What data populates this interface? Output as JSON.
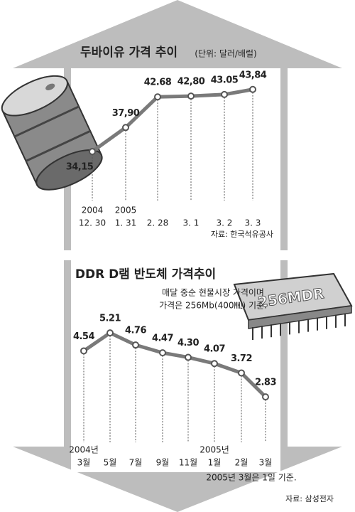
{
  "chart_data": [
    {
      "type": "line",
      "title": "두바이유 가격 추이",
      "subtitle": "(단위: 달러/배럴)",
      "year_labels": [
        "2004",
        "2005",
        null,
        null,
        null,
        null
      ],
      "categories": [
        "12. 30",
        "1. 31",
        "2. 28",
        "3. 1",
        "3. 2",
        "3. 3"
      ],
      "values": [
        34.15,
        37.9,
        42.68,
        42.8,
        43.05,
        43.84
      ],
      "value_labels": [
        "34,15",
        "37,90",
        "42.68",
        "42,80",
        "43.05",
        "43,84"
      ],
      "color": "#7a7a7a",
      "ylim": [
        26.5,
        46.7
      ],
      "source": "자료: 한국석유공사"
    },
    {
      "type": "line",
      "title": "DDR D램 반도체 가격추이",
      "notes": [
        "매달 중순 현물시장 가격이며",
        "가격은 256Mb(400㎒) 기준."
      ],
      "chip_label": "256MDR",
      "year_labels": [
        "2004년",
        null,
        null,
        null,
        null,
        "2005년",
        null,
        null
      ],
      "categories": [
        "3월",
        "5월",
        "7월",
        "9월",
        "11월",
        "1월",
        "2월",
        "3월"
      ],
      "values": [
        4.54,
        5.21,
        4.76,
        4.47,
        4.3,
        4.07,
        3.72,
        2.83
      ],
      "value_labels": [
        "4.54",
        "5.21",
        "4.76",
        "4.47",
        "4.30",
        "4.07",
        "3.72",
        "2.83"
      ],
      "color": "#7a7a7a",
      "ylim": [
        1.14,
        5.69
      ],
      "footnote": "2005년 3월은 1일 기준.",
      "source": "자료: 삼성전자"
    }
  ]
}
